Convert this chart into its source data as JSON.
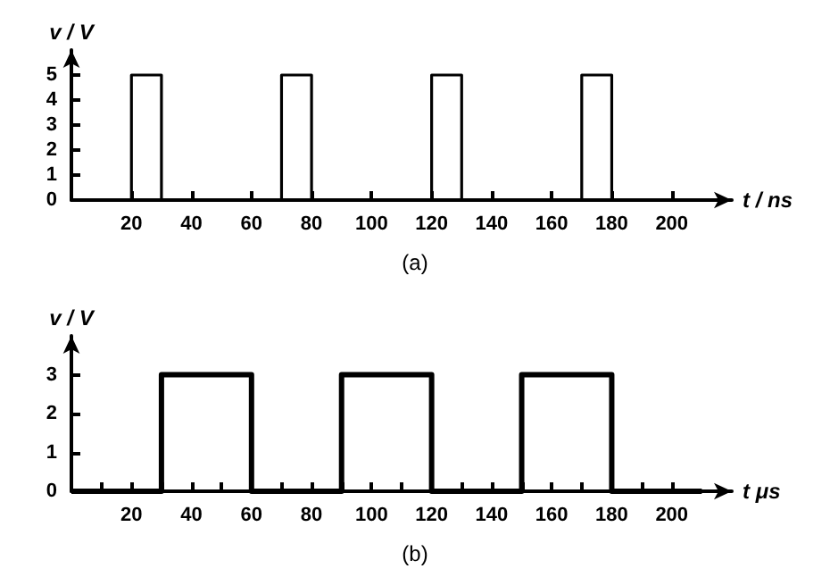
{
  "chart_data": [
    {
      "type": "line",
      "title": "(a)",
      "xlabel": "t / ns",
      "ylabel": "v / V",
      "x": [
        0,
        20,
        20,
        30,
        30,
        70,
        70,
        80,
        80,
        120,
        120,
        130,
        130,
        170,
        170,
        180,
        180,
        210
      ],
      "series": [
        {
          "color": "#000000",
          "values": [
            0,
            0,
            5,
            5,
            0,
            0,
            5,
            5,
            0,
            0,
            5,
            5,
            0,
            0,
            5,
            5,
            0,
            0
          ]
        }
      ],
      "xlim": [
        0,
        220
      ],
      "xticks": [
        20,
        40,
        60,
        80,
        100,
        120,
        140,
        160,
        180,
        200
      ],
      "ylim": [
        0,
        6
      ],
      "yticks": [
        0,
        1,
        2,
        3,
        4,
        5
      ],
      "grid": false,
      "marker": "none",
      "line_style": "solid"
    },
    {
      "type": "line",
      "title": "(b)",
      "xlabel": "t μs",
      "ylabel": "v / V",
      "x": [
        0,
        30,
        30,
        60,
        60,
        90,
        90,
        120,
        120,
        150,
        150,
        180,
        180,
        210
      ],
      "series": [
        {
          "color": "#000000",
          "values": [
            0,
            0,
            3,
            3,
            0,
            0,
            3,
            3,
            0,
            0,
            3,
            3,
            0,
            0
          ]
        }
      ],
      "xlim": [
        0,
        220
      ],
      "xticks": [
        {
          "value": 10,
          "label": null
        },
        20,
        {
          "value": 30,
          "label": null
        },
        40,
        {
          "value": 50,
          "label": null
        },
        60,
        {
          "value": 70,
          "label": null
        },
        80,
        {
          "value": 90,
          "label": null
        },
        100,
        {
          "value": 110,
          "label": null
        },
        120,
        {
          "value": 130,
          "label": null
        },
        140,
        {
          "value": 150,
          "label": null
        },
        160,
        {
          "value": 170,
          "label": null
        },
        180,
        {
          "value": 190,
          "label": null
        },
        200
      ],
      "ylim": [
        0,
        4
      ],
      "yticks": [
        0,
        1,
        2,
        3
      ],
      "grid": false,
      "marker": "none",
      "line_style": "solid"
    }
  ]
}
